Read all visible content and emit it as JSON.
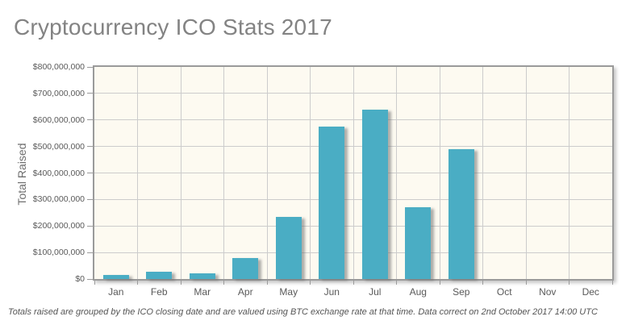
{
  "page": {
    "title": "Cryptocurrency ICO Stats 2017",
    "footnote": "Totals raised are grouped by the ICO closing date and are valued using BTC exchange rate at that time. Data correct on 2nd October 2017 14:00 UTC"
  },
  "chart_data": {
    "type": "bar",
    "title": "Cryptocurrency ICO Stats 2017",
    "categories": [
      "Jan",
      "Feb",
      "Mar",
      "Apr",
      "May",
      "Jun",
      "Jul",
      "Aug",
      "Sep",
      "Oct",
      "Nov",
      "Dec"
    ],
    "values": [
      15000000,
      28000000,
      20000000,
      80000000,
      235000000,
      575000000,
      640000000,
      270000000,
      490000000,
      0,
      0,
      0
    ],
    "xlabel": "",
    "ylabel": "Total Raised",
    "ylim": [
      0,
      800000000
    ],
    "ytick_step": 100000000,
    "ytick_labels": [
      "$0",
      "$100,000,000",
      "$200,000,000",
      "$300,000,000",
      "$400,000,000",
      "$500,000,000",
      "$600,000,000",
      "$700,000,000",
      "$800,000,000"
    ],
    "grid": true,
    "legend": false,
    "colors": {
      "bar": "#4AADC4",
      "plot_bg": "#FDFAF1",
      "grid": "#CCCCCC",
      "frame": "#9A9A9A",
      "axis_text": "#595959",
      "title_text": "#838383"
    }
  }
}
